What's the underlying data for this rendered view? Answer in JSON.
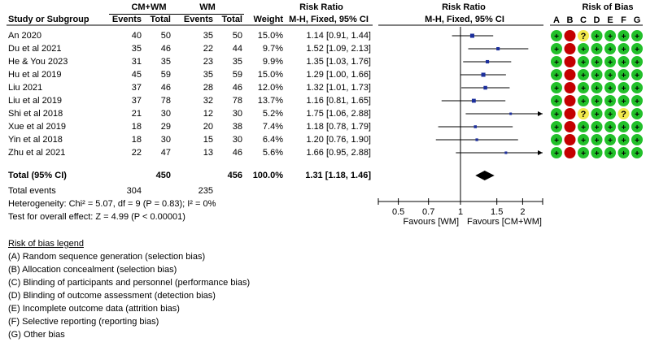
{
  "headers": {
    "study": "Study or Subgroup",
    "group1": "CM+WM",
    "group2": "WM",
    "events": "Events",
    "total": "Total",
    "weight": "Weight",
    "rr": "Risk Ratio",
    "method": "M-H, Fixed, 95% CI",
    "rob": "Risk of Bias"
  },
  "rob_columns": [
    "A",
    "B",
    "C",
    "D",
    "E",
    "F",
    "G"
  ],
  "studies": [
    {
      "name": "An 2020",
      "e1": "40",
      "t1": "50",
      "e2": "35",
      "t2": "50",
      "weight": "15.0%",
      "ci": "1.14 [0.91, 1.44]",
      "rr": 1.14,
      "lo": 0.91,
      "hi": 1.44,
      "rob": [
        "+",
        "-",
        "?",
        "+",
        "+",
        "+",
        "+"
      ]
    },
    {
      "name": "Du et al 2021",
      "e1": "35",
      "t1": "46",
      "e2": "22",
      "t2": "44",
      "weight": "9.7%",
      "ci": "1.52 [1.09, 2.13]",
      "rr": 1.52,
      "lo": 1.09,
      "hi": 2.13,
      "rob": [
        "+",
        "-",
        "+",
        "+",
        "+",
        "+",
        "+"
      ]
    },
    {
      "name": "He & You 2023",
      "e1": "31",
      "t1": "35",
      "e2": "23",
      "t2": "35",
      "weight": "9.9%",
      "ci": "1.35 [1.03, 1.76]",
      "rr": 1.35,
      "lo": 1.03,
      "hi": 1.76,
      "rob": [
        "+",
        "-",
        "+",
        "+",
        "+",
        "+",
        "+"
      ]
    },
    {
      "name": "Hu et al 2019",
      "e1": "45",
      "t1": "59",
      "e2": "35",
      "t2": "59",
      "weight": "15.0%",
      "ci": "1.29 [1.00, 1.66]",
      "rr": 1.29,
      "lo": 1.0,
      "hi": 1.66,
      "rob": [
        "+",
        "-",
        "+",
        "+",
        "+",
        "+",
        "+"
      ]
    },
    {
      "name": "Liu 2021",
      "e1": "37",
      "t1": "46",
      "e2": "28",
      "t2": "46",
      "weight": "12.0%",
      "ci": "1.32 [1.01, 1.73]",
      "rr": 1.32,
      "lo": 1.01,
      "hi": 1.73,
      "rob": [
        "+",
        "-",
        "+",
        "+",
        "+",
        "+",
        "+"
      ]
    },
    {
      "name": "Liu et al 2019",
      "e1": "37",
      "t1": "78",
      "e2": "32",
      "t2": "78",
      "weight": "13.7%",
      "ci": "1.16 [0.81, 1.65]",
      "rr": 1.16,
      "lo": 0.81,
      "hi": 1.65,
      "rob": [
        "+",
        "-",
        "+",
        "+",
        "+",
        "+",
        "+"
      ]
    },
    {
      "name": "Shi et al 2018",
      "e1": "21",
      "t1": "30",
      "e2": "12",
      "t2": "30",
      "weight": "5.2%",
      "ci": "1.75 [1.06, 2.88]",
      "rr": 1.75,
      "lo": 1.06,
      "hi": 2.88,
      "rob": [
        "+",
        "-",
        "?",
        "+",
        "+",
        "?",
        "+"
      ]
    },
    {
      "name": "Xue et al 2019",
      "e1": "18",
      "t1": "29",
      "e2": "20",
      "t2": "38",
      "weight": "7.4%",
      "ci": "1.18 [0.78, 1.79]",
      "rr": 1.18,
      "lo": 0.78,
      "hi": 1.79,
      "rob": [
        "+",
        "-",
        "+",
        "+",
        "+",
        "+",
        "+"
      ]
    },
    {
      "name": "Yin et al 2018",
      "e1": "18",
      "t1": "30",
      "e2": "15",
      "t2": "30",
      "weight": "6.4%",
      "ci": "1.20 [0.76, 1.90]",
      "rr": 1.2,
      "lo": 0.76,
      "hi": 1.9,
      "rob": [
        "+",
        "-",
        "+",
        "+",
        "+",
        "+",
        "+"
      ]
    },
    {
      "name": "Zhu et al 2021",
      "e1": "22",
      "t1": "47",
      "e2": "13",
      "t2": "46",
      "weight": "5.6%",
      "ci": "1.66 [0.95, 2.88]",
      "rr": 1.66,
      "lo": 0.95,
      "hi": 2.88,
      "rob": [
        "+",
        "-",
        "+",
        "+",
        "+",
        "+",
        "+"
      ]
    }
  ],
  "total": {
    "label": "Total (95% CI)",
    "t1": "450",
    "t2": "456",
    "weight": "100.0%",
    "ci": "1.31 [1.18, 1.46]",
    "rr": 1.31,
    "lo": 1.18,
    "hi": 1.46
  },
  "total_events": {
    "label": "Total events",
    "e1": "304",
    "e2": "235"
  },
  "heterogeneity": "Heterogeneity: Chi² = 5.07, df = 9 (P = 0.83); I² = 0%",
  "overall_effect": "Test for overall effect: Z = 4.99 (P < 0.00001)",
  "axis": {
    "ticks": [
      0.5,
      0.7,
      1,
      1.5,
      2
    ],
    "tick_labels": [
      "0.5",
      "0.7",
      "1",
      "1.5",
      "2"
    ],
    "min": 0.4,
    "max": 2.5,
    "scale": "log",
    "favours_left": "Favours [WM]",
    "favours_right": "Favours [CM+WM]"
  },
  "legend": {
    "title": "Risk of bias legend",
    "items": [
      {
        "key": "(A)",
        "text": " Random sequence generation (selection bias)"
      },
      {
        "key": "(B)",
        "text": " Allocation concealment (selection bias)"
      },
      {
        "key": "(C)",
        "text": " Blinding of participants and personnel (performance bias)"
      },
      {
        "key": "(D)",
        "text": " Blinding of outcome assessment (detection bias)"
      },
      {
        "key": "(E)",
        "text": " Incomplete outcome data (attrition bias)"
      },
      {
        "key": "(F)",
        "text": " Selective reporting (reporting bias)"
      },
      {
        "key": "(G)",
        "text": " Other bias"
      }
    ]
  },
  "colors": {
    "low": "#22c02a",
    "high": "#c40000",
    "unclear": "#f2e94e",
    "marker": "#1c2f9c"
  },
  "chart_data": {
    "type": "scatter",
    "title": "Risk Ratio",
    "subtitle": "M-H, Fixed, 95% CI",
    "xlabel": "",
    "x_scale": "log",
    "xlim": [
      0.4,
      2.5
    ],
    "x_ticks": [
      0.5,
      0.7,
      1,
      1.5,
      2
    ],
    "categories": [
      "An 2020",
      "Du et al 2021",
      "He & You 2023",
      "Hu et al 2019",
      "Liu 2021",
      "Liu et al 2019",
      "Shi et al 2018",
      "Xue et al 2019",
      "Yin et al 2018",
      "Zhu et al 2021",
      "Total (95% CI)"
    ],
    "series": [
      {
        "name": "Risk Ratio",
        "values": [
          1.14,
          1.52,
          1.35,
          1.29,
          1.32,
          1.16,
          1.75,
          1.18,
          1.2,
          1.66,
          1.31
        ]
      },
      {
        "name": "Lower 95% CI",
        "values": [
          0.91,
          1.09,
          1.03,
          1.0,
          1.01,
          0.81,
          1.06,
          0.78,
          0.76,
          0.95,
          1.18
        ]
      },
      {
        "name": "Upper 95% CI",
        "values": [
          1.44,
          2.13,
          1.76,
          1.66,
          1.73,
          1.65,
          2.88,
          1.79,
          1.9,
          2.88,
          1.46
        ]
      }
    ]
  }
}
